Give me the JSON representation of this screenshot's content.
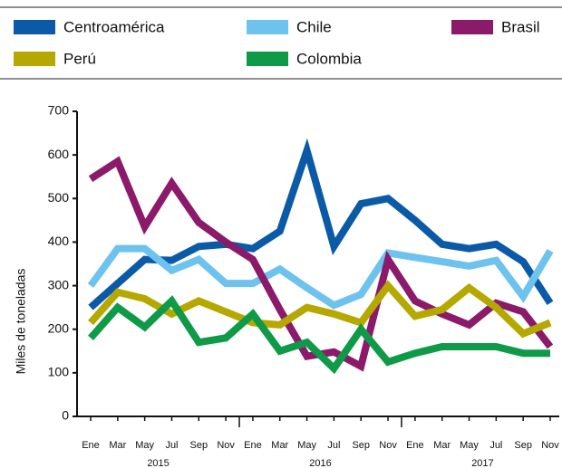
{
  "chart_data": {
    "type": "line",
    "y_label": "Miles de toneladas",
    "categories": [
      "Ene",
      "Mar",
      "May",
      "Jul",
      "Sep",
      "Nov",
      "Ene",
      "Mar",
      "May",
      "Jul",
      "Sep",
      "Nov",
      "Ene",
      "Mar",
      "May",
      "Jul",
      "Sep",
      "Nov"
    ],
    "years": [
      "2015",
      "2016",
      "2017"
    ],
    "ylim": [
      0,
      700
    ],
    "yticks": [
      0,
      100,
      200,
      300,
      400,
      500,
      600,
      700
    ],
    "series": [
      {
        "name": "Centroamérica",
        "color": "#0a5aa8",
        "values": [
          250,
          305,
          360,
          358,
          390,
          395,
          385,
          425,
          610,
          390,
          488,
          500,
          450,
          395,
          385,
          395,
          355,
          260
        ]
      },
      {
        "name": "Chile",
        "color": "#6ec3ee",
        "values": [
          300,
          385,
          385,
          335,
          360,
          305,
          305,
          338,
          295,
          255,
          280,
          375,
          365,
          355,
          345,
          358,
          275,
          380
        ]
      },
      {
        "name": "Brasil",
        "color": "#8b1a6b",
        "values": [
          545,
          585,
          435,
          535,
          445,
          400,
          360,
          245,
          138,
          148,
          115,
          360,
          265,
          235,
          210,
          260,
          240,
          160
        ]
      },
      {
        "name": "Perú",
        "color": "#b5a800",
        "values": [
          215,
          285,
          270,
          235,
          265,
          240,
          215,
          210,
          250,
          235,
          215,
          300,
          230,
          245,
          295,
          250,
          190,
          215
        ]
      },
      {
        "name": "Colombia",
        "color": "#0f9a48",
        "values": [
          180,
          250,
          205,
          265,
          170,
          180,
          235,
          150,
          170,
          110,
          200,
          125,
          145,
          160,
          160,
          160,
          145,
          145
        ]
      }
    ]
  }
}
